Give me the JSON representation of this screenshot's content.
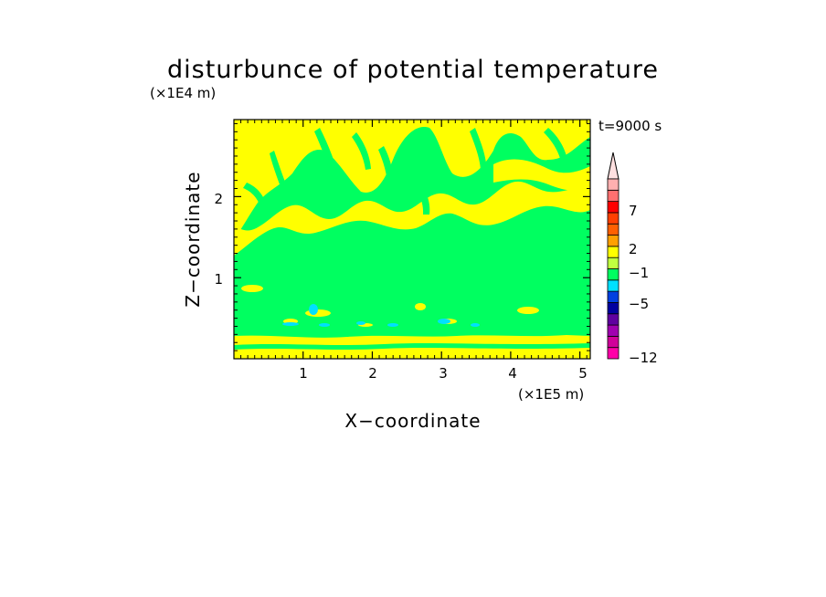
{
  "chart_data": {
    "type": "heatmap",
    "title": "disturbunce of potential temperature",
    "z_unit": "(x1E4 m)",
    "x_unit": "(x1E5 m)",
    "xlabel": "X-coordinate",
    "ylabel": "Z-coordinate",
    "time_label": "t=9000 s",
    "xlim": [
      0,
      5.15
    ],
    "ylim": [
      0,
      2.95
    ],
    "x_ticks": [
      "1",
      "2",
      "3",
      "4",
      "5"
    ],
    "y_ticks": [
      "1",
      "2"
    ],
    "colorbar": {
      "labels": [
        "7",
        "2",
        "-1",
        "-5",
        "-12"
      ],
      "label_levels": [
        7,
        2,
        -1,
        -5,
        -12
      ],
      "levels": [
        -12,
        -10,
        -8,
        -6,
        -5,
        -4,
        -3,
        -2,
        -1,
        0,
        1,
        2,
        3,
        5,
        7,
        9,
        11
      ],
      "colors": [
        "#ff00a8",
        "#d0009a",
        "#a000b0",
        "#6000a0",
        "#0000a0",
        "#0040e0",
        "#00e0ff",
        "#00ff60",
        "#c0ff40",
        "#ffff00",
        "#ffa000",
        "#ff6000",
        "#ff4000",
        "#ff0000",
        "#ff7070",
        "#ffb0b0"
      ],
      "extend_color": "#ffe0e0"
    },
    "regions": [
      {
        "name": "upper-layer",
        "z_range": [
          1.4,
          2.95
        ],
        "value": "0 to 1 (yellow) mixed with -1 to 0 (green)"
      },
      {
        "name": "middle-layer",
        "z_range": [
          0.3,
          1.4
        ],
        "value": "-1 to 0 (green)"
      },
      {
        "name": "surface-layer",
        "z_range": [
          0,
          0.3
        ],
        "value": "0 to 1 (yellow)"
      },
      {
        "name": "cold-spots",
        "z_range": [
          0.4,
          0.65
        ],
        "value": "-2 to -1 (cyan)"
      }
    ]
  }
}
